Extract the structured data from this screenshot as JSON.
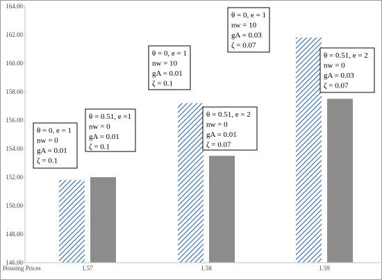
{
  "chart_data": {
    "type": "bar",
    "title": "",
    "xlabel": "Housing Prices",
    "ylabel": "",
    "categories": [
      "1.57",
      "1.58",
      "1.59"
    ],
    "ylim": [
      146,
      164
    ],
    "yticks": [
      146,
      148,
      150,
      152,
      154,
      156,
      158,
      160,
      162,
      164
    ],
    "ytick_labels": [
      "146.00",
      "148.00",
      "150.00",
      "152.00",
      "154.00",
      "156.00",
      "158.00",
      "160.00",
      "162.00",
      "164.00"
    ],
    "grid": false,
    "series": [
      {
        "values": [
          151.8,
          157.2,
          161.8
        ],
        "fill": "hatched",
        "color": "#2E64B0"
      },
      {
        "values": [
          152.0,
          153.5,
          157.5
        ],
        "fill": "solid",
        "color": "#8C8C8C"
      }
    ],
    "annotations": [
      {
        "lines": [
          "θ = 0, e = 1",
          "nw = 0",
          "gA  = 0.01",
          "ζ = 0.1"
        ]
      },
      {
        "lines": [
          "θ = 0.51, e =1",
          "nw = 0",
          "gA = 0.01",
          "ζ = 0.1"
        ]
      },
      {
        "lines": [
          "θ = 0, e = 1",
          "nw = 10",
          "gA = 0.01",
          "ζ = 0.1"
        ]
      },
      {
        "lines": [
          "θ = 0.51, e = 2",
          "nw = 0",
          "gA = 0.01",
          "ζ = 0.07"
        ]
      },
      {
        "lines": [
          "θ = 0, e = 1",
          "nw = 10",
          "gA = 0.03",
          "ζ = 0.07"
        ]
      },
      {
        "lines": [
          "θ = 0.51, e = 2",
          "nw = 0",
          "gA = 0.03",
          "ζ = 0.07"
        ]
      }
    ]
  }
}
